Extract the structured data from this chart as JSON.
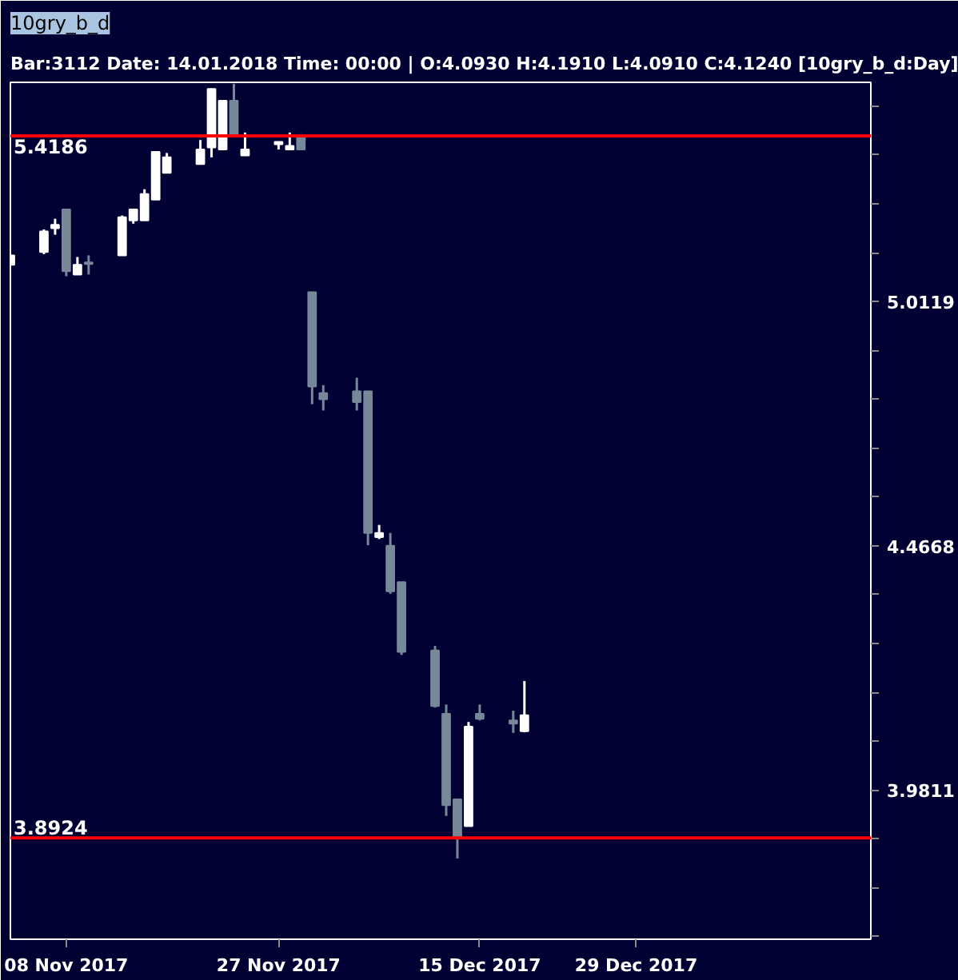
{
  "chart_data": {
    "type": "candlestick",
    "title": "10gry_b_d",
    "subtitle": "Bar:3112 Date: 14.01.2018 Time: 00:00 | O:4.0930 H:4.1910 L:4.0910 C:4.1240  [10gry_b_d:Day]",
    "x": [
      "2017-11-03",
      "2017-11-06",
      "2017-11-07",
      "2017-11-08",
      "2017-11-09",
      "2017-11-10",
      "2017-11-13",
      "2017-11-14",
      "2017-11-15",
      "2017-11-16",
      "2017-11-17",
      "2017-11-20",
      "2017-11-21",
      "2017-11-22",
      "2017-11-23",
      "2017-11-24",
      "2017-11-27",
      "2017-11-28",
      "2017-11-29",
      "2017-11-30",
      "2017-12-01",
      "2017-12-04",
      "2017-12-05",
      "2017-12-06",
      "2017-12-07",
      "2017-12-08",
      "2017-12-11",
      "2017-12-12",
      "2017-12-13",
      "2017-12-14",
      "2017-12-15",
      "2017-12-18",
      "2017-12-19"
    ],
    "ohlc": [
      [
        5.099,
        5.122,
        5.099,
        5.122
      ],
      [
        5.13,
        5.185,
        5.125,
        5.18
      ],
      [
        5.188,
        5.211,
        5.172,
        5.196
      ],
      [
        5.234,
        5.234,
        5.072,
        5.084
      ],
      [
        5.076,
        5.118,
        5.076,
        5.099
      ],
      [
        5.105,
        5.122,
        5.076,
        5.101
      ],
      [
        5.122,
        5.219,
        5.122,
        5.215
      ],
      [
        5.207,
        5.234,
        5.199,
        5.234
      ],
      [
        5.207,
        5.284,
        5.207,
        5.272
      ],
      [
        5.258,
        5.378,
        5.258,
        5.378
      ],
      [
        5.325,
        5.375,
        5.325,
        5.364
      ],
      [
        5.347,
        5.408,
        5.347,
        5.384
      ],
      [
        5.389,
        5.54,
        5.364,
        5.54
      ],
      [
        5.384,
        5.509,
        5.384,
        5.509
      ],
      [
        5.509,
        5.553,
        5.418,
        5.418
      ],
      [
        5.369,
        5.427,
        5.369,
        5.384
      ],
      [
        5.397,
        5.403,
        5.384,
        5.403
      ],
      [
        5.384,
        5.427,
        5.384,
        5.393
      ],
      [
        5.418,
        5.423,
        5.384,
        5.384
      ],
      [
        5.034,
        5.034,
        4.775,
        4.815
      ],
      [
        4.8,
        4.818,
        4.761,
        4.786
      ],
      [
        4.804,
        4.835,
        4.761,
        4.78
      ],
      [
        4.804,
        4.804,
        4.468,
        4.494
      ],
      [
        4.485,
        4.511,
        4.481,
        4.494
      ],
      [
        4.467,
        4.494,
        4.367,
        4.372
      ],
      [
        4.391,
        4.391,
        4.243,
        4.249
      ],
      [
        4.252,
        4.261,
        4.139,
        4.142
      ],
      [
        4.127,
        4.145,
        3.933,
        3.953
      ],
      [
        3.964,
        3.964,
        3.855,
        3.893
      ],
      [
        3.914,
        4.111,
        3.914,
        4.102
      ],
      [
        4.127,
        4.145,
        4.114,
        4.117
      ],
      [
        4.114,
        4.133,
        4.09,
        4.108
      ],
      [
        4.093,
        4.191,
        4.091,
        4.124
      ]
    ],
    "colors": [
      "#ffffff",
      "#ffffff",
      "#ffffff",
      "#778899",
      "#ffffff",
      "#778899",
      "#ffffff",
      "#ffffff",
      "#ffffff",
      "#ffffff",
      "#ffffff",
      "#ffffff",
      "#ffffff",
      "#ffffff",
      "#778899",
      "#ffffff",
      "#ffffff",
      "#ffffff",
      "#778899",
      "#778899",
      "#778899",
      "#778899",
      "#778899",
      "#ffffff",
      "#778899",
      "#778899",
      "#778899",
      "#778899",
      "#778899",
      "#ffffff",
      "#778899",
      "#778899",
      "#ffffff"
    ],
    "xlim": [
      "2017-11-03",
      "2018-01-19"
    ],
    "xticks": [
      {
        "value": "2017-11-08",
        "label": "08 Nov 2017"
      },
      {
        "value": "2017-11-27",
        "label": "27 Nov 2017"
      },
      {
        "value": "2017-12-15",
        "label": "15 Dec 2017"
      },
      {
        "value": "2017-12-29",
        "label": "29 Dec 2017"
      }
    ],
    "ylim": [
      3.711,
      5.557
    ],
    "log": "y",
    "yticks": [
      {
        "value": 3.7154,
        "label": null
      },
      {
        "value": 3.8019,
        "label": null
      },
      {
        "value": 3.8905,
        "label": null
      },
      3.9811,
      {
        "value": 4.0738,
        "label": null
      },
      {
        "value": 4.1687,
        "label": null
      },
      {
        "value": 4.2658,
        "label": null
      },
      {
        "value": 4.3652,
        "label": null
      },
      4.4668,
      {
        "value": 4.5709,
        "label": null
      },
      {
        "value": 4.6774,
        "label": null
      },
      {
        "value": 4.7863,
        "label": null
      },
      {
        "value": 4.8978,
        "label": null
      },
      5.0119,
      {
        "value": 5.1286,
        "label": null
      },
      {
        "value": 5.2481,
        "label": null
      },
      {
        "value": 5.3703,
        "label": null
      },
      {
        "value": 5.4954,
        "label": null
      }
    ],
    "ref_lines": [
      {
        "axis": "y",
        "value": 5.4186,
        "label": "5.4186",
        "color": "#ff0000"
      },
      {
        "axis": "y",
        "value": 3.8924,
        "label": "3.8924",
        "color": "#ff0000"
      }
    ],
    "grid": false
  }
}
